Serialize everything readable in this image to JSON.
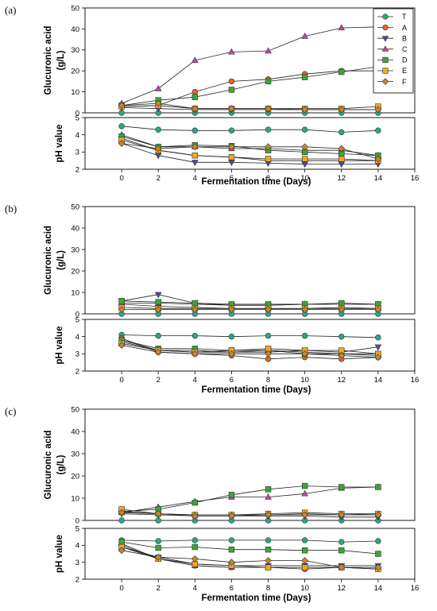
{
  "legend": {
    "entries": [
      {
        "label": "T",
        "color": "#2aa889",
        "marker": "circle"
      },
      {
        "label": "A",
        "color": "#e8631f",
        "marker": "circle"
      },
      {
        "label": "B",
        "color": "#4a4fa0",
        "marker": "triangle-down"
      },
      {
        "label": "C",
        "color": "#c843a8",
        "marker": "triangle-up"
      },
      {
        "label": "D",
        "color": "#3aa63a",
        "marker": "square"
      },
      {
        "label": "E",
        "color": "#f4a81c",
        "marker": "square"
      },
      {
        "label": "F",
        "color": "#c8862a",
        "marker": "diamond"
      }
    ]
  },
  "chart_data": [
    {
      "panel": "(a)",
      "subplot": "glucuronic",
      "type": "line",
      "ylabel": "Glucuronic acid (g/L)",
      "xlabel": "",
      "xlim": [
        -2,
        16
      ],
      "ylim": [
        0,
        50
      ],
      "xticks": [
        0,
        2,
        4,
        6,
        8,
        10,
        12,
        14,
        16
      ],
      "yticks": [
        0,
        10,
        20,
        30,
        40,
        50
      ],
      "x": [
        0,
        2,
        4,
        6,
        8,
        10,
        12,
        14
      ],
      "series": [
        {
          "name": "T",
          "values": [
            0,
            0,
            0,
            0,
            0,
            0,
            0,
            0
          ]
        },
        {
          "name": "A",
          "values": [
            3,
            3.5,
            10,
            15,
            16,
            18.5,
            20,
            20
          ]
        },
        {
          "name": "B",
          "values": [
            2.5,
            2,
            1.5,
            1.5,
            1.5,
            1.5,
            1.5,
            1.5
          ]
        },
        {
          "name": "C",
          "values": [
            4.5,
            11.5,
            25,
            29,
            29.5,
            36.5,
            40.5,
            41
          ]
        },
        {
          "name": "D",
          "values": [
            3.5,
            6,
            7.5,
            11,
            15,
            17,
            19.5,
            22
          ]
        },
        {
          "name": "E",
          "values": [
            3,
            3.5,
            2,
            2,
            2,
            2,
            2,
            3
          ]
        },
        {
          "name": "F",
          "values": [
            3.5,
            4.5,
            2,
            2,
            2,
            1.5,
            1.5,
            1.5
          ]
        }
      ]
    },
    {
      "panel": "(a)",
      "subplot": "ph",
      "type": "line",
      "ylabel": "pH value",
      "xlabel": "Fermentation time (Days)",
      "xlim": [
        -2,
        16
      ],
      "ylim": [
        2,
        5
      ],
      "xticks": [
        0,
        2,
        4,
        6,
        8,
        10,
        12,
        14,
        16
      ],
      "yticks": [
        2,
        3,
        4,
        5
      ],
      "x": [
        0,
        2,
        4,
        6,
        8,
        10,
        12,
        14
      ],
      "series": [
        {
          "name": "T",
          "values": [
            4.5,
            4.3,
            4.25,
            4.25,
            4.3,
            4.3,
            4.15,
            4.25
          ]
        },
        {
          "name": "A",
          "values": [
            3.8,
            3.1,
            2.8,
            2.7,
            2.5,
            2.5,
            2.5,
            2.5
          ]
        },
        {
          "name": "B",
          "values": [
            3.5,
            2.8,
            2.4,
            2.4,
            2.35,
            2.3,
            2.3,
            2.3
          ]
        },
        {
          "name": "C",
          "values": [
            4.0,
            3.3,
            3.3,
            3.2,
            3.2,
            3.1,
            3.1,
            2.8
          ]
        },
        {
          "name": "D",
          "values": [
            3.9,
            3.3,
            3.4,
            3.35,
            3.1,
            3.0,
            2.9,
            2.8
          ]
        },
        {
          "name": "E",
          "values": [
            3.7,
            3.1,
            2.8,
            2.7,
            2.6,
            2.6,
            2.6,
            2.5
          ]
        },
        {
          "name": "F",
          "values": [
            3.5,
            3.2,
            3.3,
            3.3,
            3.3,
            3.3,
            3.2,
            2.6
          ]
        }
      ]
    },
    {
      "panel": "(b)",
      "subplot": "glucuronic",
      "type": "line",
      "ylabel": "Glucuronic acid (g/L)",
      "xlabel": "",
      "xlim": [
        -2,
        16
      ],
      "ylim": [
        0,
        50
      ],
      "xticks": [
        0,
        2,
        4,
        6,
        8,
        10,
        12,
        14,
        16
      ],
      "yticks": [
        0,
        10,
        20,
        30,
        40,
        50
      ],
      "x": [
        0,
        2,
        4,
        6,
        8,
        10,
        12,
        14
      ],
      "series": [
        {
          "name": "T",
          "values": [
            0,
            0,
            0,
            0,
            0,
            0,
            0,
            0
          ]
        },
        {
          "name": "A",
          "values": [
            4.5,
            3.5,
            3,
            2.5,
            2.5,
            2.5,
            3,
            2.5
          ]
        },
        {
          "name": "B",
          "values": [
            6,
            9,
            5,
            4,
            4,
            4.5,
            4.5,
            4.5
          ]
        },
        {
          "name": "C",
          "values": [
            5,
            5,
            4.5,
            4,
            4,
            4.5,
            4.5,
            4.5
          ]
        },
        {
          "name": "D",
          "values": [
            6,
            5.5,
            5,
            4.5,
            4.5,
            4.5,
            5,
            4.5
          ]
        },
        {
          "name": "E",
          "values": [
            3,
            2.5,
            2.5,
            2.5,
            2.5,
            2.5,
            2.5,
            2.5
          ]
        },
        {
          "name": "F",
          "values": [
            2,
            2,
            2,
            2,
            2,
            2,
            2,
            2
          ]
        }
      ]
    },
    {
      "panel": "(b)",
      "subplot": "ph",
      "type": "line",
      "ylabel": "pH value",
      "xlabel": "Fermentation time (Days)",
      "xlim": [
        -2,
        16
      ],
      "ylim": [
        2,
        5
      ],
      "xticks": [
        0,
        2,
        4,
        6,
        8,
        10,
        12,
        14,
        16
      ],
      "yticks": [
        2,
        3,
        4,
        5
      ],
      "x": [
        0,
        2,
        4,
        6,
        8,
        10,
        12,
        14
      ],
      "series": [
        {
          "name": "T",
          "values": [
            4.1,
            4.05,
            4.05,
            4.0,
            4.05,
            4.05,
            4.0,
            3.95
          ]
        },
        {
          "name": "A",
          "values": [
            3.9,
            3.1,
            3.0,
            2.9,
            2.7,
            2.8,
            2.7,
            2.8
          ]
        },
        {
          "name": "B",
          "values": [
            3.8,
            3.2,
            3.1,
            3.1,
            3.1,
            3.2,
            3.1,
            3.4
          ]
        },
        {
          "name": "C",
          "values": [
            3.7,
            3.2,
            3.2,
            3.1,
            3.2,
            3.1,
            3.0,
            2.9
          ]
        },
        {
          "name": "D",
          "values": [
            3.8,
            3.3,
            3.3,
            3.2,
            3.2,
            3.0,
            3.0,
            3.0
          ]
        },
        {
          "name": "E",
          "values": [
            3.6,
            3.2,
            3.1,
            3.2,
            3.3,
            3.2,
            3.2,
            3.0
          ]
        },
        {
          "name": "F",
          "values": [
            3.5,
            3.1,
            3.0,
            3.0,
            3.0,
            3.0,
            2.9,
            2.8
          ]
        }
      ]
    },
    {
      "panel": "(c)",
      "subplot": "glucuronic",
      "type": "line",
      "ylabel": "Glucuronic acid (g/L)",
      "xlabel": "",
      "xlim": [
        -2,
        16
      ],
      "ylim": [
        0,
        50
      ],
      "xticks": [
        0,
        2,
        4,
        6,
        8,
        10,
        12,
        14,
        16
      ],
      "yticks": [
        0,
        10,
        20,
        30,
        40,
        50
      ],
      "x": [
        0,
        2,
        4,
        6,
        8,
        10,
        12,
        14
      ],
      "series": [
        {
          "name": "T",
          "values": [
            0,
            0,
            0,
            0,
            0,
            0,
            0,
            0
          ]
        },
        {
          "name": "A",
          "values": [
            4,
            3,
            2.5,
            2.5,
            2.5,
            3,
            2.5,
            3
          ]
        },
        {
          "name": "B",
          "values": [
            3,
            2.5,
            2,
            2,
            2,
            2,
            1.5,
            1.5
          ]
        },
        {
          "name": "C",
          "values": [
            3.5,
            6,
            8.5,
            10.5,
            10.5,
            12,
            14.5,
            15
          ]
        },
        {
          "name": "D",
          "values": [
            4,
            5,
            8,
            11.5,
            14,
            15.5,
            15,
            15
          ]
        },
        {
          "name": "E",
          "values": [
            5,
            3,
            2.5,
            2.5,
            3,
            3.5,
            3,
            3
          ]
        },
        {
          "name": "F",
          "values": [
            3.5,
            3,
            2,
            2,
            2.5,
            2.5,
            2.5,
            2.5
          ]
        }
      ]
    },
    {
      "panel": "(c)",
      "subplot": "ph",
      "type": "line",
      "ylabel": "pH value",
      "xlabel": "Fermentation time (Days)",
      "xlim": [
        -2,
        16
      ],
      "ylim": [
        2,
        5
      ],
      "xticks": [
        0,
        2,
        4,
        6,
        8,
        10,
        12,
        14,
        16
      ],
      "yticks": [
        2,
        3,
        4,
        5
      ],
      "x": [
        0,
        2,
        4,
        6,
        8,
        10,
        12,
        14
      ],
      "series": [
        {
          "name": "T",
          "values": [
            4.3,
            4.25,
            4.3,
            4.3,
            4.3,
            4.3,
            4.2,
            4.25
          ]
        },
        {
          "name": "A",
          "values": [
            4.0,
            3.2,
            2.8,
            2.7,
            2.7,
            2.6,
            2.7,
            2.6
          ]
        },
        {
          "name": "B",
          "values": [
            3.9,
            3.3,
            2.9,
            2.8,
            2.8,
            2.8,
            2.8,
            2.8
          ]
        },
        {
          "name": "C",
          "values": [
            4.1,
            3.2,
            2.8,
            2.7,
            2.7,
            2.7,
            2.7,
            2.7
          ]
        },
        {
          "name": "D",
          "values": [
            4.2,
            3.85,
            3.9,
            3.75,
            3.75,
            3.7,
            3.7,
            3.5
          ]
        },
        {
          "name": "E",
          "values": [
            3.9,
            3.2,
            2.9,
            2.8,
            2.7,
            2.7,
            2.7,
            2.6
          ]
        },
        {
          "name": "F",
          "values": [
            3.7,
            3.3,
            3.2,
            3.0,
            3.1,
            3.1,
            2.7,
            2.7
          ]
        }
      ]
    }
  ]
}
